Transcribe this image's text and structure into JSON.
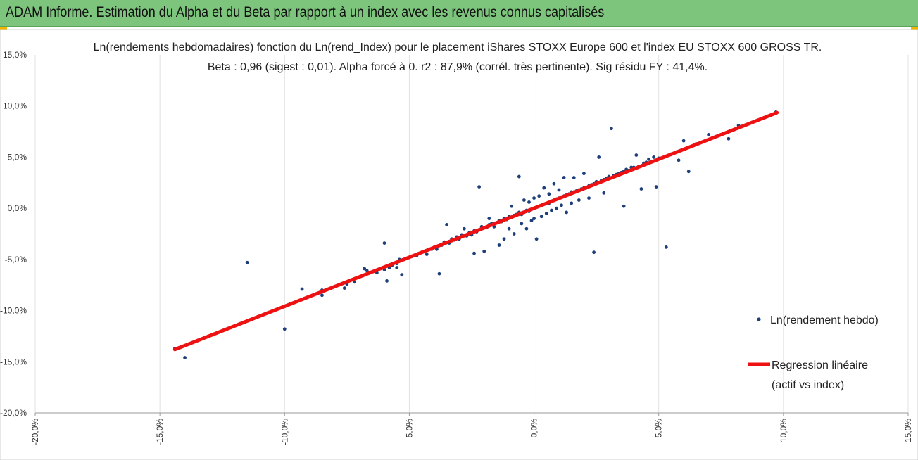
{
  "banner": {
    "title": "ADAM Informe. Estimation du Alpha et du Beta par rapport à un index avec les revenus connus capitalisés",
    "background_color": "#7dc57d"
  },
  "chart_data": {
    "type": "scatter",
    "title": "Ln(rendements hebdomadaires) fonction du Ln(rend_Index) pour le placement iShares STOXX Europe 600  et l'index EU STOXX 600 GROSS TR.",
    "subtitle": "Beta : 0,96 (sigest : 0,01).  Alpha forcé à 0. r2 : 87,9% (corrél. très pertinente). Sig résidu FY : 41,4%.",
    "xlabel": "",
    "ylabel": "",
    "xlim": [
      -0.2,
      0.15
    ],
    "ylim": [
      -0.2,
      0.15
    ],
    "x_ticks": [
      -0.2,
      -0.15,
      -0.1,
      -0.05,
      0.0,
      0.05,
      0.1,
      0.15
    ],
    "x_tick_labels": [
      "-20,0%",
      "-15,0%",
      "-10,0%",
      "-5,0%",
      "0,0%",
      "5,0%",
      "10,0%",
      "15,0%"
    ],
    "y_ticks": [
      0.15,
      0.1,
      0.05,
      0.0,
      -0.05,
      -0.1,
      -0.15,
      -0.2
    ],
    "y_tick_labels": [
      "15,0%",
      "10,0%",
      "5,0%",
      "0,0%",
      "-5,0%",
      "-10,0%",
      "-15,0%",
      "-20,0%"
    ],
    "grid": "vertical",
    "legend_position": "right",
    "series": [
      {
        "name": "Ln(rendement hebdo)",
        "kind": "scatter",
        "color": "#1f3f7a",
        "points": [
          [
            -0.144,
            -0.137
          ],
          [
            -0.14,
            -0.146
          ],
          [
            -0.115,
            -0.053
          ],
          [
            -0.1,
            -0.096
          ],
          [
            -0.1,
            -0.118
          ],
          [
            -0.093,
            -0.079
          ],
          [
            -0.085,
            -0.08
          ],
          [
            -0.085,
            -0.085
          ],
          [
            -0.076,
            -0.078
          ],
          [
            -0.075,
            -0.074
          ],
          [
            -0.072,
            -0.072
          ],
          [
            -0.068,
            -0.059
          ],
          [
            -0.067,
            -0.061
          ],
          [
            -0.066,
            -0.063
          ],
          [
            -0.063,
            -0.063
          ],
          [
            -0.06,
            -0.034
          ],
          [
            -0.06,
            -0.06
          ],
          [
            -0.059,
            -0.071
          ],
          [
            -0.058,
            -0.058
          ],
          [
            -0.057,
            -0.056
          ],
          [
            -0.055,
            -0.054
          ],
          [
            -0.055,
            -0.058
          ],
          [
            -0.054,
            -0.05
          ],
          [
            -0.053,
            -0.065
          ],
          [
            -0.052,
            -0.05
          ],
          [
            -0.05,
            -0.048
          ],
          [
            -0.049,
            -0.047
          ],
          [
            -0.047,
            -0.046
          ],
          [
            -0.046,
            -0.044
          ],
          [
            -0.045,
            -0.043
          ],
          [
            -0.043,
            -0.045
          ],
          [
            -0.041,
            -0.04
          ],
          [
            -0.04,
            -0.038
          ],
          [
            -0.039,
            -0.04
          ],
          [
            -0.038,
            -0.064
          ],
          [
            -0.037,
            -0.036
          ],
          [
            -0.036,
            -0.033
          ],
          [
            -0.035,
            -0.016
          ],
          [
            -0.034,
            -0.034
          ],
          [
            -0.033,
            -0.03
          ],
          [
            -0.032,
            -0.031
          ],
          [
            -0.031,
            -0.028
          ],
          [
            -0.03,
            -0.03
          ],
          [
            -0.029,
            -0.026
          ],
          [
            -0.028,
            -0.02
          ],
          [
            -0.027,
            -0.027
          ],
          [
            -0.026,
            -0.024
          ],
          [
            -0.025,
            -0.026
          ],
          [
            -0.024,
            -0.022
          ],
          [
            -0.024,
            -0.044
          ],
          [
            -0.023,
            -0.023
          ],
          [
            -0.022,
            -0.021
          ],
          [
            -0.022,
            0.021
          ],
          [
            -0.021,
            -0.018
          ],
          [
            -0.02,
            -0.042
          ],
          [
            -0.019,
            -0.019
          ],
          [
            -0.018,
            -0.016
          ],
          [
            -0.018,
            -0.01
          ],
          [
            -0.017,
            -0.015
          ],
          [
            -0.016,
            -0.018
          ],
          [
            -0.015,
            -0.014
          ],
          [
            -0.014,
            -0.036
          ],
          [
            -0.014,
            -0.012
          ],
          [
            -0.013,
            -0.013
          ],
          [
            -0.012,
            -0.01
          ],
          [
            -0.012,
            -0.03
          ],
          [
            -0.011,
            -0.011
          ],
          [
            -0.01,
            -0.008
          ],
          [
            -0.01,
            -0.02
          ],
          [
            -0.009,
            -0.009
          ],
          [
            -0.009,
            0.002
          ],
          [
            -0.008,
            -0.007
          ],
          [
            -0.008,
            -0.025
          ],
          [
            -0.007,
            -0.006
          ],
          [
            -0.006,
            -0.004
          ],
          [
            -0.006,
            0.031
          ],
          [
            -0.005,
            -0.006
          ],
          [
            -0.005,
            -0.015
          ],
          [
            -0.004,
            -0.004
          ],
          [
            -0.004,
            0.008
          ],
          [
            -0.003,
            -0.002
          ],
          [
            -0.003,
            -0.02
          ],
          [
            -0.002,
            -0.003
          ],
          [
            -0.002,
            0.006
          ],
          [
            -0.001,
            -0.001
          ],
          [
            -0.001,
            -0.012
          ],
          [
            0.0,
            0.0
          ],
          [
            0.0,
            0.01
          ],
          [
            0.0,
            -0.01
          ],
          [
            0.001,
            0.001
          ],
          [
            0.001,
            -0.03
          ],
          [
            0.002,
            0.002
          ],
          [
            0.002,
            0.012
          ],
          [
            0.003,
            0.003
          ],
          [
            0.003,
            -0.008
          ],
          [
            0.004,
            0.004
          ],
          [
            0.004,
            0.02
          ],
          [
            0.005,
            0.005
          ],
          [
            0.005,
            -0.005
          ],
          [
            0.006,
            0.005
          ],
          [
            0.006,
            0.014
          ],
          [
            0.007,
            0.007
          ],
          [
            0.007,
            -0.002
          ],
          [
            0.008,
            0.008
          ],
          [
            0.008,
            0.024
          ],
          [
            0.009,
            0.009
          ],
          [
            0.009,
            0.0
          ],
          [
            0.01,
            0.01
          ],
          [
            0.01,
            0.018
          ],
          [
            0.011,
            0.011
          ],
          [
            0.011,
            0.003
          ],
          [
            0.012,
            0.012
          ],
          [
            0.012,
            0.03
          ],
          [
            0.013,
            0.013
          ],
          [
            0.013,
            -0.004
          ],
          [
            0.014,
            0.014
          ],
          [
            0.015,
            0.016
          ],
          [
            0.015,
            0.005
          ],
          [
            0.016,
            0.016
          ],
          [
            0.016,
            0.03
          ],
          [
            0.017,
            0.017
          ],
          [
            0.018,
            0.018
          ],
          [
            0.018,
            0.008
          ],
          [
            0.019,
            0.019
          ],
          [
            0.02,
            0.02
          ],
          [
            0.02,
            0.034
          ],
          [
            0.021,
            0.02
          ],
          [
            0.022,
            0.022
          ],
          [
            0.022,
            0.01
          ],
          [
            0.023,
            0.023
          ],
          [
            0.024,
            0.024
          ],
          [
            0.024,
            -0.043
          ],
          [
            0.025,
            0.026
          ],
          [
            0.026,
            0.025
          ],
          [
            0.026,
            0.05
          ],
          [
            0.027,
            0.027
          ],
          [
            0.028,
            0.028
          ],
          [
            0.028,
            0.015
          ],
          [
            0.029,
            0.029
          ],
          [
            0.03,
            0.031
          ],
          [
            0.031,
            0.078
          ],
          [
            0.032,
            0.032
          ],
          [
            0.033,
            0.033
          ],
          [
            0.034,
            0.034
          ],
          [
            0.035,
            0.035
          ],
          [
            0.036,
            0.036
          ],
          [
            0.036,
            0.002
          ],
          [
            0.037,
            0.038
          ],
          [
            0.038,
            0.037
          ],
          [
            0.039,
            0.04
          ],
          [
            0.04,
            0.04
          ],
          [
            0.041,
            0.052
          ],
          [
            0.042,
            0.041
          ],
          [
            0.043,
            0.019
          ],
          [
            0.044,
            0.044
          ],
          [
            0.045,
            0.045
          ],
          [
            0.046,
            0.048
          ],
          [
            0.047,
            0.046
          ],
          [
            0.048,
            0.05
          ],
          [
            0.049,
            0.021
          ],
          [
            0.05,
            0.049
          ],
          [
            0.053,
            -0.038
          ],
          [
            0.055,
            0.053
          ],
          [
            0.057,
            0.055
          ],
          [
            0.058,
            0.047
          ],
          [
            0.06,
            0.066
          ],
          [
            0.062,
            0.036
          ],
          [
            0.065,
            0.063
          ],
          [
            0.07,
            0.072
          ],
          [
            0.078,
            0.068
          ],
          [
            0.082,
            0.081
          ],
          [
            0.097,
            0.094
          ]
        ]
      },
      {
        "name": "Regression linéaire",
        "name_line2": "(actif vs index)",
        "kind": "line",
        "color": "#ee1111",
        "x": [
          -0.144,
          0.0974
        ],
        "y": [
          -0.138,
          0.0935
        ]
      }
    ]
  }
}
